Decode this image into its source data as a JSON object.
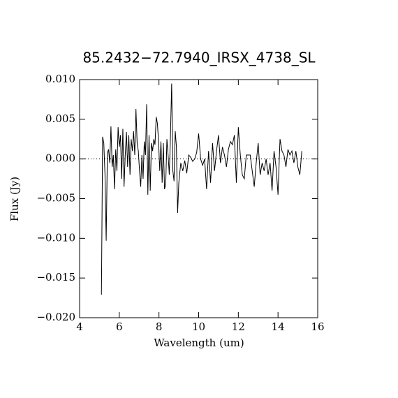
{
  "chart_data": {
    "type": "line",
    "title": "85.2432−72.7940_IRSX_4738_SL",
    "xlabel": "Wavelength (um)",
    "ylabel": "Flux (Jy)",
    "x": [
      5.1,
      5.16,
      5.22,
      5.28,
      5.34,
      5.4,
      5.46,
      5.52,
      5.58,
      5.64,
      5.7,
      5.76,
      5.82,
      5.88,
      5.94,
      6.0,
      6.06,
      6.12,
      6.18,
      6.24,
      6.3,
      6.36,
      6.42,
      6.48,
      6.54,
      6.6,
      6.66,
      6.72,
      6.78,
      6.84,
      6.9,
      6.96,
      7.02,
      7.08,
      7.14,
      7.2,
      7.26,
      7.32,
      7.38,
      7.44,
      7.5,
      7.56,
      7.62,
      7.68,
      7.74,
      7.8,
      7.86,
      7.92,
      7.98,
      8.04,
      8.1,
      8.16,
      8.22,
      8.28,
      8.34,
      8.4,
      8.46,
      8.52,
      8.58,
      8.64,
      8.7,
      8.76,
      8.82,
      8.88,
      8.94,
      9.0,
      9.1,
      9.2,
      9.3,
      9.4,
      9.5,
      9.6,
      9.7,
      9.8,
      9.9,
      10.0,
      10.1,
      10.2,
      10.3,
      10.4,
      10.5,
      10.6,
      10.7,
      10.8,
      10.9,
      11.0,
      11.1,
      11.2,
      11.3,
      11.4,
      11.5,
      11.6,
      11.7,
      11.8,
      11.9,
      12.0,
      12.1,
      12.2,
      12.3,
      12.4,
      12.5,
      12.6,
      12.7,
      12.8,
      12.9,
      13.0,
      13.1,
      13.2,
      13.3,
      13.4,
      13.5,
      13.6,
      13.7,
      13.8,
      13.9,
      14.0,
      14.1,
      14.2,
      14.3,
      14.4,
      14.5,
      14.6,
      14.7,
      14.8,
      14.9,
      15.0,
      15.1,
      15.2
    ],
    "values": [
      -0.0171,
      0.0028,
      0.002,
      -0.002,
      -0.0103,
      0.0008,
      0.0012,
      -0.0005,
      0.0041,
      -0.001,
      0.0005,
      -0.0038,
      0.0012,
      -0.0015,
      0.004,
      0.0015,
      0.003,
      -0.0025,
      0.0038,
      -0.0035,
      0.0005,
      0.0034,
      -0.001,
      0.003,
      -0.002,
      0.0025,
      0.001,
      0.0035,
      0.0005,
      0.0063,
      0.002,
      0.001,
      -0.0015,
      -0.0035,
      0.0005,
      -0.0025,
      0.0022,
      0.0005,
      0.0069,
      -0.0045,
      0.003,
      -0.004,
      0.002,
      0.001,
      0.0025,
      0.0018,
      0.0053,
      0.0045,
      0.0022,
      -0.0015,
      0.0022,
      -0.003,
      0.002,
      -0.0038,
      -0.0032,
      0.0025,
      0.0005,
      -0.002,
      0.003,
      0.0095,
      -0.0015,
      -0.0028,
      0.0035,
      0.0015,
      -0.0068,
      -0.003,
      -0.0005,
      -0.0015,
      -0.0002,
      -0.0018,
      0.0005,
      0.0002,
      -0.0003,
      0.0,
      0.0008,
      0.0032,
      0.0,
      -0.0008,
      0.0,
      -0.0038,
      0.001,
      -0.003,
      0.002,
      -0.0015,
      0.001,
      0.003,
      -0.0005,
      0.0015,
      0.0005,
      -0.001,
      0.0012,
      0.0022,
      0.0018,
      0.003,
      -0.003,
      0.004,
      0.0005,
      -0.002,
      -0.0025,
      0.0005,
      0.0005,
      0.0005,
      -0.0015,
      -0.0035,
      -0.0005,
      0.002,
      -0.002,
      -0.0005,
      -0.0015,
      0.0,
      -0.002,
      -0.0005,
      -0.004,
      0.001,
      -0.001,
      -0.0045,
      0.0025,
      0.001,
      0.0005,
      -0.001,
      0.0012,
      0.0005,
      0.001,
      -0.0005,
      0.001,
      -0.001,
      -0.002,
      0.001
    ],
    "color": "#000000",
    "xlim": [
      4,
      16
    ],
    "ylim": [
      -0.02,
      0.01
    ],
    "xticks": [
      4,
      6,
      8,
      10,
      12,
      14,
      16
    ],
    "yticks": [
      {
        "value": 0.01,
        "label": "0.010"
      },
      {
        "value": 0.005,
        "label": "0.005"
      },
      {
        "value": 0,
        "label": "0.000"
      },
      {
        "value": -0.005,
        "label": "−0.005"
      },
      {
        "value": -0.01,
        "label": "−0.010"
      },
      {
        "value": -0.015,
        "label": "−0.015"
      },
      {
        "value": -0.02,
        "label": "−0.020"
      }
    ],
    "zero_line": true
  }
}
